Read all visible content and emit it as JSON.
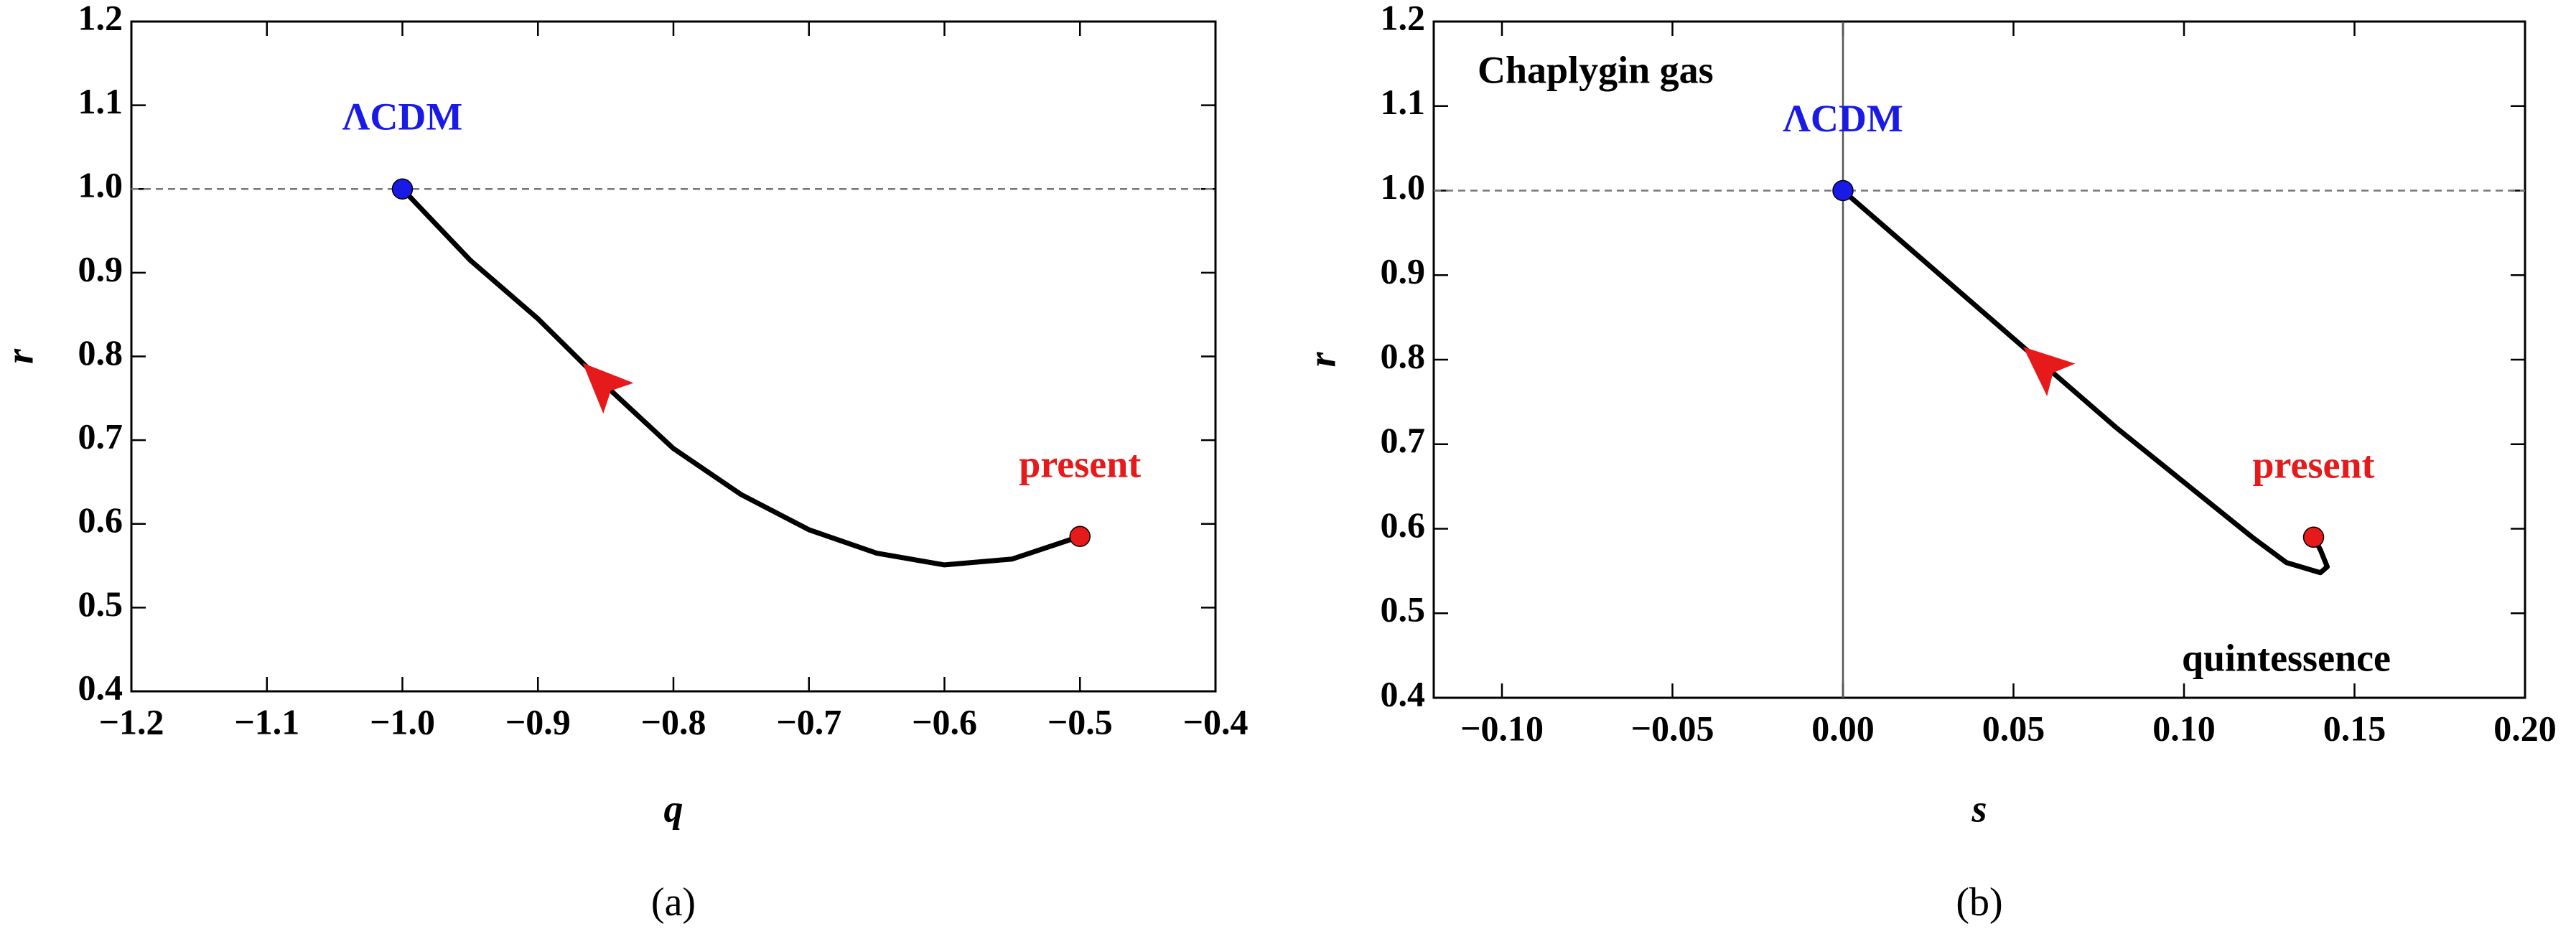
{
  "chart_data": [
    {
      "type": "line",
      "caption": "(a)",
      "xlabel": "q",
      "ylabel": "r",
      "xlim": [
        -1.2,
        -0.4
      ],
      "ylim": [
        0.4,
        1.2
      ],
      "xticks": [
        {
          "value": -1.2,
          "label": "−1.2"
        },
        {
          "value": -1.1,
          "label": "−1.1"
        },
        {
          "value": -1.0,
          "label": "−1.0"
        },
        {
          "value": -0.9,
          "label": "−0.9"
        },
        {
          "value": -0.8,
          "label": "−0.8"
        },
        {
          "value": -0.7,
          "label": "−0.7"
        },
        {
          "value": -0.6,
          "label": "−0.6"
        },
        {
          "value": -0.5,
          "label": "−0.5"
        },
        {
          "value": -0.4,
          "label": "−0.4"
        }
      ],
      "yticks": [
        0.4,
        0.5,
        0.6,
        0.7,
        0.8,
        0.9,
        {
          "value": 1.0,
          "label": "1.0"
        },
        1.1,
        1.2
      ],
      "hline": 1.0,
      "series": [
        {
          "color": "#000000",
          "x": [
            -1.0,
            -0.95,
            -0.9,
            -0.85,
            -0.8,
            -0.75,
            -0.7,
            -0.65,
            -0.6,
            -0.55,
            -0.5
          ],
          "values": [
            1.0,
            0.915,
            0.845,
            0.765,
            0.69,
            0.635,
            0.593,
            0.565,
            0.551,
            0.558,
            0.585
          ]
        }
      ],
      "markers": [
        {
          "name": "ΛCDM",
          "color": "#1a1ae6",
          "x": -1.0,
          "y": 1.0
        },
        {
          "name": "present",
          "color": "#e61a1a",
          "x": -0.5,
          "y": 0.585
        }
      ]
    },
    {
      "type": "line",
      "caption": "(b)",
      "xlabel": "s",
      "ylabel": "r",
      "xlim": [
        -0.12,
        0.2
      ],
      "ylim": [
        0.4,
        1.2
      ],
      "xticks": [
        {
          "value": -0.1,
          "label": "−0.10"
        },
        {
          "value": -0.05,
          "label": "−0.05"
        },
        {
          "value": 0.0,
          "label": "0.00"
        },
        {
          "value": 0.05,
          "label": "0.05"
        },
        {
          "value": 0.1,
          "label": "0.10"
        },
        {
          "value": 0.15,
          "label": "0.15"
        },
        {
          "value": 0.2,
          "label": "0.20"
        }
      ],
      "yticks": [
        0.4,
        0.5,
        0.6,
        0.7,
        0.8,
        0.9,
        {
          "value": 1.0,
          "label": "1.0"
        },
        1.1,
        1.2
      ],
      "hline": 1.0,
      "vline": 0.0,
      "annotations": [
        "Chaplygin gas",
        "quintessence"
      ],
      "series": [
        {
          "color": "#000000",
          "x": [
            0.0,
            0.02,
            0.04,
            0.06,
            0.08,
            0.1,
            0.12,
            0.13,
            0.14,
            0.142,
            0.14,
            0.138
          ],
          "values": [
            1.0,
            0.93,
            0.86,
            0.79,
            0.72,
            0.655,
            0.59,
            0.56,
            0.548,
            0.555,
            0.575,
            0.59
          ]
        }
      ],
      "markers": [
        {
          "name": "ΛCDM",
          "color": "#1a1ae6",
          "x": 0.0,
          "y": 1.0
        },
        {
          "name": "present",
          "color": "#e61a1a",
          "x": 0.138,
          "y": 0.59
        }
      ]
    }
  ]
}
